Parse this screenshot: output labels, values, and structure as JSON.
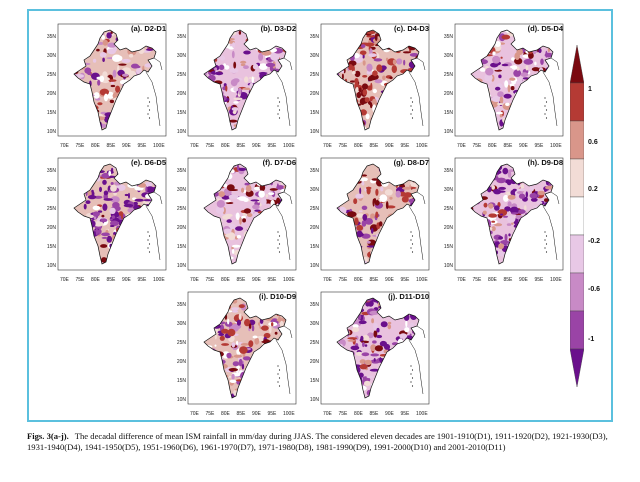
{
  "figure": {
    "panels": [
      {
        "title": "(a). D2-D1",
        "pattern": 0
      },
      {
        "title": "(b). D3-D2",
        "pattern": 1
      },
      {
        "title": "(c). D4-D3",
        "pattern": 2
      },
      {
        "title": "(d). D5-D4",
        "pattern": 3
      },
      {
        "title": "(e). D6-D5",
        "pattern": 4
      },
      {
        "title": "(f). D7-D6",
        "pattern": 5
      },
      {
        "title": "(g). D8-D7",
        "pattern": 6
      },
      {
        "title": "(h). D9-D8",
        "pattern": 7
      },
      {
        "title": "(i). D10-D9",
        "pattern": 8
      },
      {
        "title": "(j). D11-D10",
        "pattern": 9
      }
    ],
    "lat_ticks": [
      "35N",
      "30N",
      "25N",
      "20N",
      "15N",
      "10N"
    ],
    "lon_ticks": [
      "70E",
      "75E",
      "80E",
      "85E",
      "90E",
      "95E",
      "100E"
    ],
    "colorbar": {
      "labels": [
        "1",
        "0.6",
        "0.2",
        "-0.2",
        "-0.6",
        "-1"
      ],
      "colors": [
        "#7a0a10",
        "#b53a34",
        "#d9968a",
        "#f2dcd6",
        "#ffffff",
        "#e8c8e6",
        "#c88ac6",
        "#9a44a6",
        "#6a108c"
      ],
      "colors_hint": "Top brown through white to purple bottom"
    }
  },
  "caption": {
    "label": "Figs. 3(a-j).",
    "text": "The decadal difference of mean ISM rainfall in mm/day during JJAS. The considered eleven decades are 1901-1910(D1), 1911-1920(D2), 1921-1930(D3), 1931-1940(D4), 1941-1950(D5), 1951-1960(D6), 1961-1970(D7), 1971-1980(D8), 1981-1990(D9), 1991-2000(D10) and 2001-2010(D11)"
  }
}
